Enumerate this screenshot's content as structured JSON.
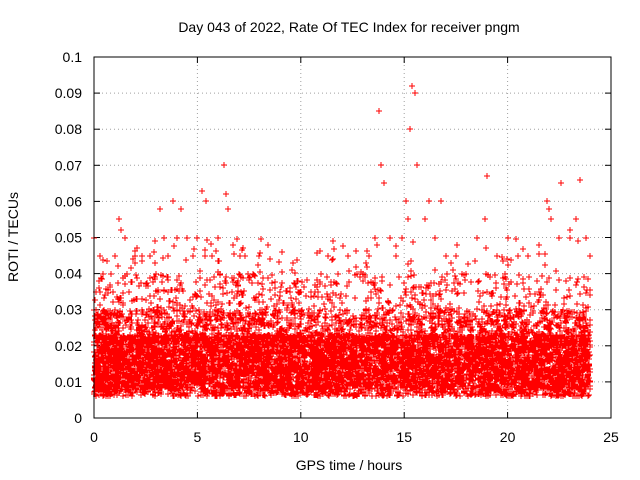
{
  "chart_data": {
    "type": "scatter",
    "title": "Day 043 of 2022, Rate Of TEC Index for receiver pngm",
    "xlabel": "GPS time / hours",
    "ylabel": "ROTI / TECUs",
    "xlim": [
      0,
      25
    ],
    "ylim": [
      0,
      0.1
    ],
    "xticks": [
      0,
      5,
      10,
      15,
      20,
      25
    ],
    "yticks": [
      0,
      0.01,
      0.02,
      0.03,
      0.04,
      0.05,
      0.06,
      0.07,
      0.08,
      0.09,
      0.1
    ],
    "xtick_labels": [
      "0",
      "5",
      "10",
      "15",
      "20",
      "25"
    ],
    "ytick_labels": [
      "0",
      "0.01",
      "0.02",
      "0.03",
      "0.04",
      "0.05",
      "0.06",
      "0.07",
      "0.08",
      "0.09",
      "0.1"
    ],
    "grid": true,
    "marker": "+",
    "color": "#ff0000",
    "series": [
      {
        "name": "ROTI",
        "x": [
          0.0,
          0.1,
          0.3,
          0.5,
          0.8,
          1.0,
          1.2,
          1.3,
          1.6,
          2.0,
          2.3,
          2.7,
          3.0,
          3.2,
          3.4,
          3.6,
          3.8,
          4.0,
          4.2,
          4.5,
          4.8,
          5.0,
          5.2,
          5.4,
          5.7,
          6.0,
          6.3,
          6.4,
          6.5,
          6.7,
          7.0,
          7.3,
          7.7,
          8.0,
          8.4,
          8.5,
          9.0,
          9.5,
          9.6,
          10.0,
          10.5,
          11.0,
          11.3,
          11.8,
          12.3,
          12.7,
          13.0,
          13.3,
          13.6,
          13.7,
          13.8,
          13.9,
          14.0,
          14.3,
          14.6,
          14.9,
          15.1,
          15.2,
          15.3,
          15.4,
          15.5,
          15.6,
          16.0,
          16.2,
          16.5,
          16.8,
          17.0,
          17.5,
          18.0,
          18.5,
          18.9,
          19.0,
          19.5,
          20.0,
          20.5,
          21.0,
          21.5,
          21.9,
          22.0,
          22.1,
          22.5,
          22.6,
          23.0,
          23.3,
          23.5,
          23.8,
          24.0
        ],
        "y": [
          0.05,
          0.03,
          0.035,
          0.03,
          0.04,
          0.045,
          0.055,
          0.052,
          0.04,
          0.045,
          0.045,
          0.045,
          0.04,
          0.058,
          0.05,
          0.045,
          0.06,
          0.05,
          0.058,
          0.05,
          0.045,
          0.05,
          0.063,
          0.06,
          0.045,
          0.05,
          0.07,
          0.062,
          0.058,
          0.048,
          0.04,
          0.045,
          0.04,
          0.045,
          0.048,
          0.044,
          0.035,
          0.035,
          0.043,
          0.035,
          0.035,
          0.04,
          0.045,
          0.04,
          0.045,
          0.04,
          0.04,
          0.045,
          0.05,
          0.048,
          0.085,
          0.07,
          0.065,
          0.05,
          0.045,
          0.05,
          0.06,
          0.055,
          0.08,
          0.092,
          0.09,
          0.07,
          0.055,
          0.06,
          0.05,
          0.06,
          0.045,
          0.045,
          0.04,
          0.05,
          0.055,
          0.067,
          0.045,
          0.05,
          0.045,
          0.045,
          0.048,
          0.06,
          0.058,
          0.055,
          0.05,
          0.065,
          0.052,
          0.055,
          0.066,
          0.05,
          0.045
        ]
      }
    ]
  }
}
